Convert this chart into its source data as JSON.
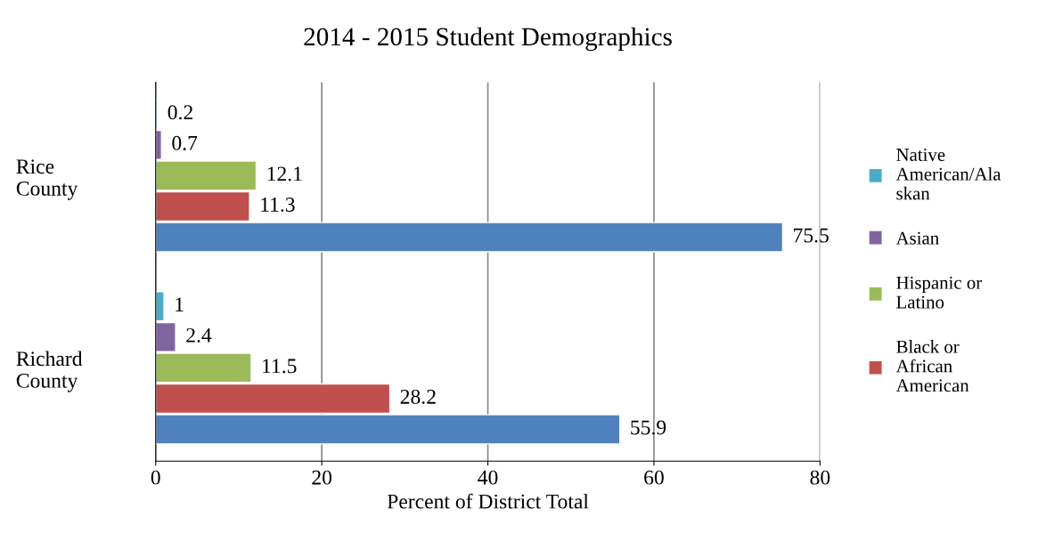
{
  "chart_data": {
    "type": "bar",
    "orientation": "horizontal",
    "title": "2014 - 2015 Student Demographics",
    "xlabel": "Percent of District Total",
    "categories": [
      "Rice\nCounty",
      "Richard\nCounty"
    ],
    "series": [
      {
        "name": "Native\nAmerican/Ala\nskan",
        "color": "#4bacc6",
        "values": [
          0.2,
          1
        ]
      },
      {
        "name": "Asian",
        "color": "#8064a2",
        "values": [
          0.7,
          2.4
        ]
      },
      {
        "name": "Hispanic or\nLatino",
        "color": "#9bbb59",
        "values": [
          12.1,
          11.5
        ]
      },
      {
        "name": "Black or\nAfrican\nAmerican",
        "color": "#c0504d",
        "values": [
          11.3,
          28.2
        ]
      },
      {
        "color": "#4f81bd",
        "values": [
          75.5,
          55.9
        ]
      }
    ],
    "xlim": [
      0,
      80
    ],
    "xticks": [
      0,
      20,
      40,
      60,
      80
    ],
    "grid": "x",
    "legend": "right",
    "data_labels": true
  }
}
